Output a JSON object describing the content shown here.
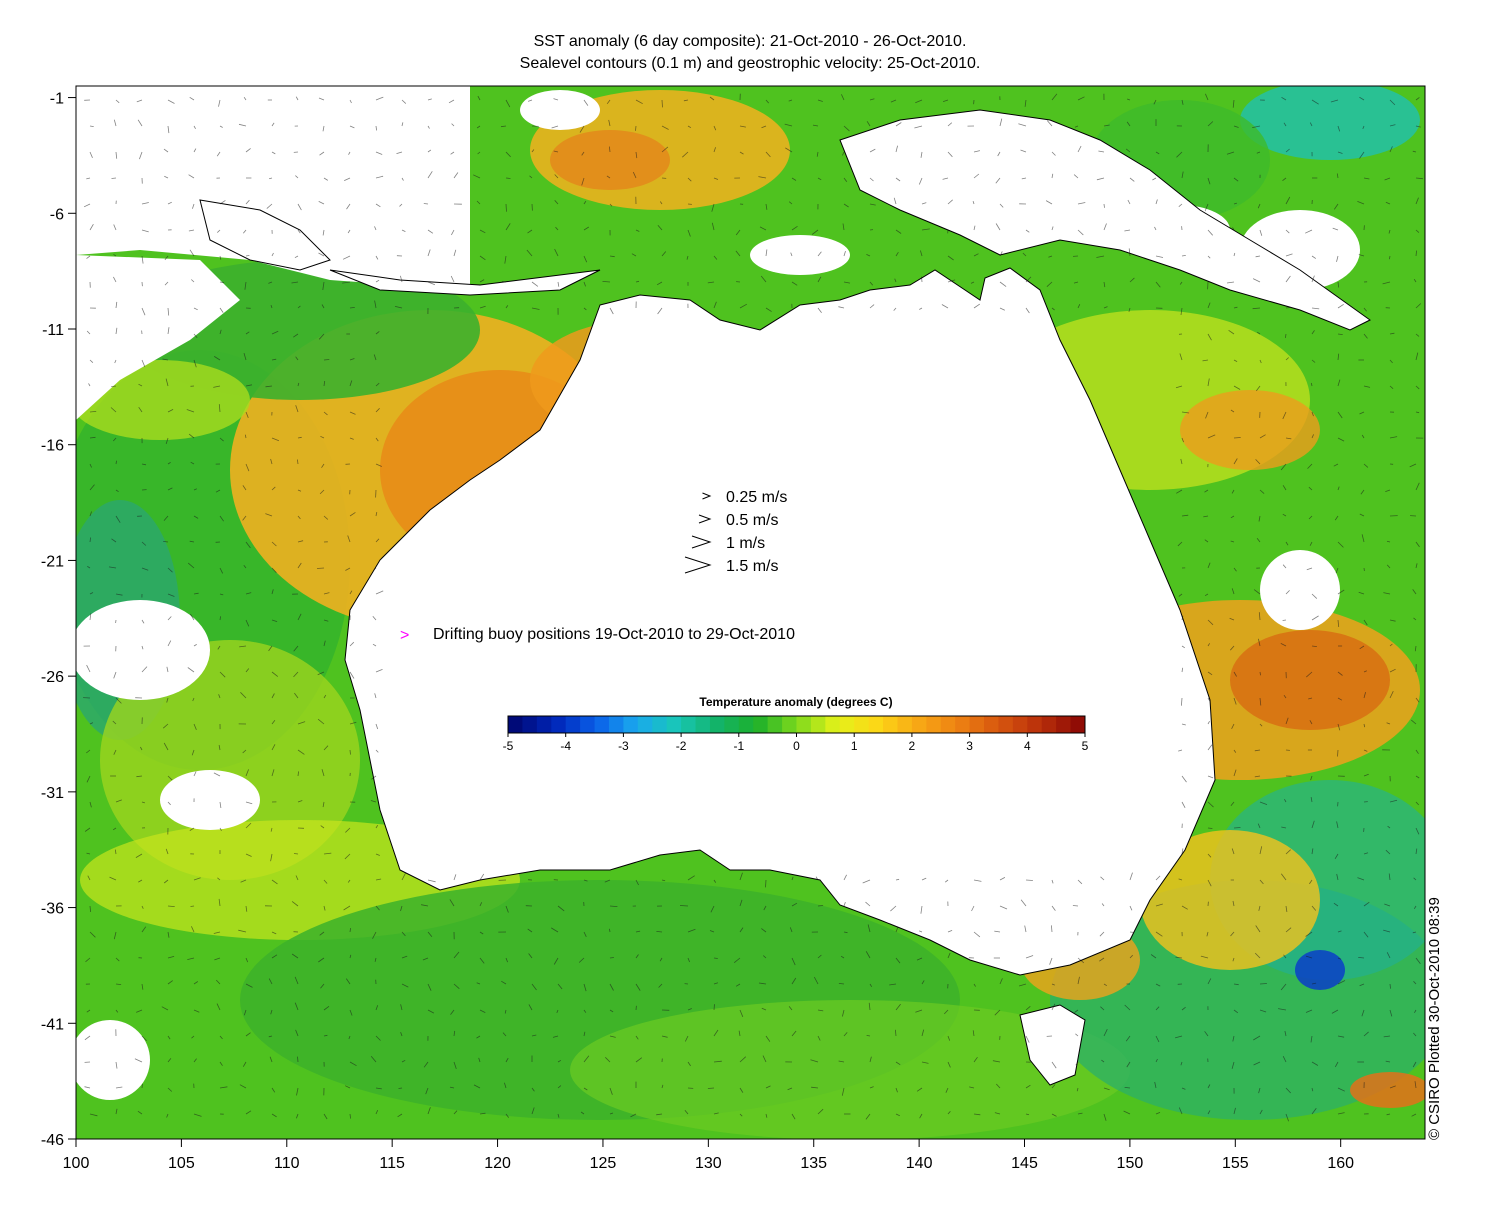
{
  "title_line1": "SST anomaly (6 day composite): 21-Oct-2010 - 26-Oct-2010.",
  "title_line2": "Sealevel contours (0.1 m) and geostrophic velocity: 25-Oct-2010.",
  "y_axis": {
    "ticks": [
      "-1",
      "-6",
      "-11",
      "-16",
      "-21",
      "-26",
      "-31",
      "-36",
      "-41",
      "-46"
    ],
    "range": [
      -46,
      -0.5
    ]
  },
  "x_axis": {
    "ticks": [
      "100",
      "105",
      "110",
      "115",
      "120",
      "125",
      "130",
      "135",
      "140",
      "145",
      "150",
      "155",
      "160"
    ],
    "range": [
      100,
      164
    ]
  },
  "velocity_legend": [
    {
      "label": "0.25 m/s",
      "speed": 0.25
    },
    {
      "label": "0.5 m/s",
      "speed": 0.5
    },
    {
      "label": "1 m/s",
      "speed": 1
    },
    {
      "label": "1.5 m/s",
      "speed": 1.5
    }
  ],
  "buoy_legend": {
    "symbol": ">",
    "label": "Drifting buoy positions 19-Oct-2010 to 29-Oct-2010",
    "color": "#ff00ff"
  },
  "colorbar": {
    "title": "Temperature anomaly (degrees C)",
    "ticks": [
      "-5",
      "-4",
      "-3",
      "-2",
      "-1",
      "0",
      "1",
      "2",
      "3",
      "4",
      "5"
    ],
    "range": [
      -5,
      5
    ],
    "colors": [
      "#000a78",
      "#0026b8",
      "#0a5ee8",
      "#1aa8ee",
      "#19c7b8",
      "#13b36b",
      "#1db02a",
      "#7dd91d",
      "#e4f21a",
      "#fcd717",
      "#f8a915",
      "#ee8212",
      "#d8580f",
      "#bb310b",
      "#900c05"
    ]
  },
  "credit": "© CSIRO Plotted 30-Oct-2010 08:39"
}
